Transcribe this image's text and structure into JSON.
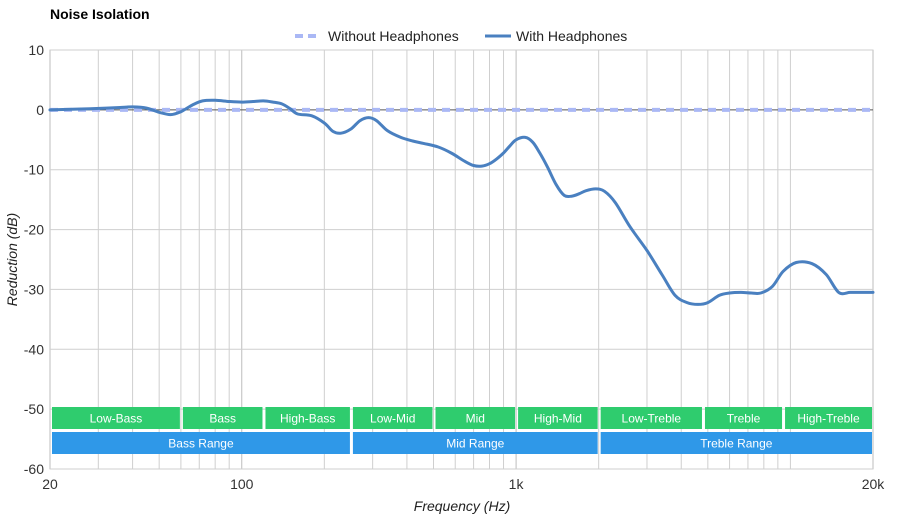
{
  "chart_data": {
    "type": "line",
    "title": "Noise Isolation",
    "xlabel": "Frequency (Hz)",
    "ylabel": "Reduction (dB)",
    "xscale": "log",
    "xlim": [
      20,
      20000
    ],
    "ylim": [
      -60,
      10
    ],
    "grid": true,
    "legend_position": "top-center",
    "x_ticks": [
      {
        "value": 20,
        "label": "20"
      },
      {
        "value": 100,
        "label": "100"
      },
      {
        "value": 1000,
        "label": "1k"
      },
      {
        "value": 20000,
        "label": "20k"
      }
    ],
    "y_ticks": [
      10,
      0,
      -10,
      -20,
      -30,
      -40,
      -50,
      -60
    ],
    "minor_x_gridlines": [
      30,
      40,
      50,
      60,
      70,
      80,
      90,
      200,
      300,
      400,
      500,
      600,
      700,
      800,
      900,
      2000,
      3000,
      4000,
      5000,
      6000,
      7000,
      8000,
      9000,
      10000
    ],
    "series": [
      {
        "name": "Without Headphones",
        "style": "dashed",
        "color": "#aab8f5",
        "x": [
          20,
          20000
        ],
        "y": [
          0,
          0
        ]
      },
      {
        "name": "With Headphones",
        "style": "solid",
        "color": "#4a80c0",
        "x": [
          20,
          24,
          28,
          32,
          36,
          40,
          45,
          50,
          55,
          60,
          66,
          72,
          80,
          90,
          100,
          110,
          120,
          130,
          140,
          150,
          160,
          180,
          200,
          215,
          230,
          250,
          270,
          290,
          310,
          340,
          380,
          420,
          460,
          520,
          580,
          650,
          700,
          750,
          800,
          850,
          900,
          950,
          1000,
          1080,
          1150,
          1220,
          1300,
          1400,
          1500,
          1600,
          1700,
          1800,
          1950,
          2100,
          2300,
          2600,
          3000,
          3400,
          3800,
          4200,
          4600,
          5000,
          5500,
          6000,
          6600,
          7200,
          7800,
          8600,
          9400,
          10500,
          12000,
          13500,
          15000,
          16500,
          18000,
          20000
        ],
        "y": [
          0,
          0.1,
          0.2,
          0.3,
          0.4,
          0.5,
          0.3,
          -0.4,
          -0.8,
          -0.3,
          0.8,
          1.5,
          1.6,
          1.4,
          1.3,
          1.4,
          1.5,
          1.3,
          1.0,
          0.2,
          -0.7,
          -1.0,
          -2.2,
          -3.6,
          -3.9,
          -3.2,
          -1.8,
          -1.3,
          -1.8,
          -3.5,
          -4.6,
          -5.2,
          -5.6,
          -6.2,
          -7.2,
          -8.6,
          -9.3,
          -9.4,
          -9.0,
          -8.2,
          -7.2,
          -6.0,
          -5.0,
          -4.6,
          -5.4,
          -7.2,
          -9.5,
          -12.5,
          -14.3,
          -14.4,
          -14.0,
          -13.5,
          -13.2,
          -13.6,
          -15.5,
          -19.5,
          -23.5,
          -27.5,
          -31.0,
          -32.2,
          -32.5,
          -32.2,
          -31.0,
          -30.6,
          -30.5,
          -30.6,
          -30.6,
          -29.5,
          -27.0,
          -25.5,
          -25.7,
          -27.5,
          -30.5,
          -30.5,
          -30.5,
          -30.5
        ]
      }
    ],
    "bands": [
      {
        "label": "Low-Bass",
        "start": 20,
        "end": 60,
        "row": 1,
        "color": "#2fcc6e"
      },
      {
        "label": "Bass",
        "start": 60,
        "end": 120,
        "row": 1,
        "color": "#2fcc6e"
      },
      {
        "label": "High-Bass",
        "start": 120,
        "end": 250,
        "row": 1,
        "color": "#2fcc6e"
      },
      {
        "label": "Low-Mid",
        "start": 250,
        "end": 500,
        "row": 1,
        "color": "#2fcc6e"
      },
      {
        "label": "Mid",
        "start": 500,
        "end": 1000,
        "row": 1,
        "color": "#2fcc6e"
      },
      {
        "label": "High-Mid",
        "start": 1000,
        "end": 2000,
        "row": 1,
        "color": "#2fcc6e"
      },
      {
        "label": "Low-Treble",
        "start": 2000,
        "end": 4800,
        "row": 1,
        "color": "#2fcc6e"
      },
      {
        "label": "Treble",
        "start": 4800,
        "end": 9400,
        "row": 1,
        "color": "#2fcc6e"
      },
      {
        "label": "High-Treble",
        "start": 9400,
        "end": 20000,
        "row": 1,
        "color": "#2fcc6e"
      },
      {
        "label": "Bass Range",
        "start": 20,
        "end": 250,
        "row": 2,
        "color": "#2f98e8"
      },
      {
        "label": "Mid Range",
        "start": 250,
        "end": 2000,
        "row": 2,
        "color": "#2f98e8"
      },
      {
        "label": "Treble Range",
        "start": 2000,
        "end": 20000,
        "row": 2,
        "color": "#2f98e8"
      }
    ]
  }
}
